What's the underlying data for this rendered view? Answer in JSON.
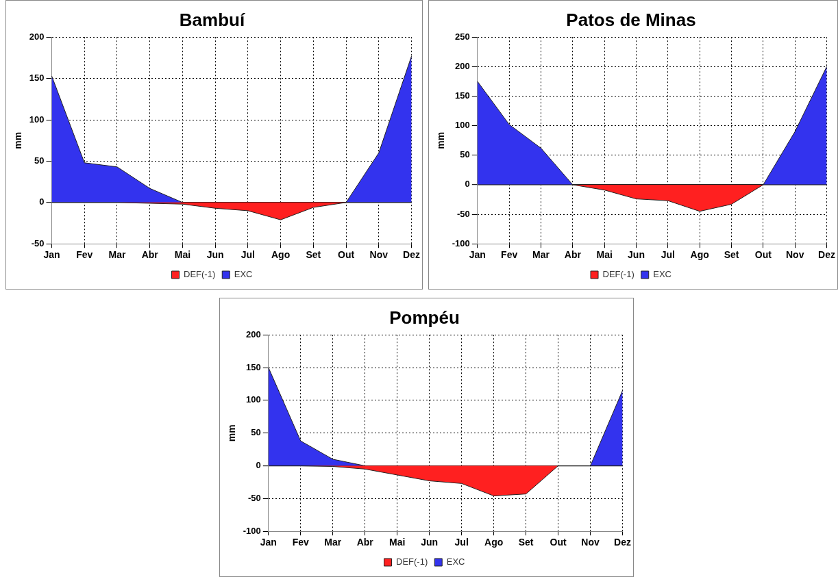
{
  "chart_data": [
    {
      "type": "area",
      "title": "Bambuí",
      "ylabel": "mm",
      "categories": [
        "Jan",
        "Fev",
        "Mar",
        "Abr",
        "Mai",
        "Jun",
        "Jul",
        "Ago",
        "Set",
        "Out",
        "Nov",
        "Dez"
      ],
      "series": [
        {
          "name": "DEF(-1)",
          "color": "#ff2020",
          "values": [
            0,
            0,
            0,
            -1,
            -2,
            -7,
            -10,
            -21,
            -6,
            0,
            0,
            0
          ]
        },
        {
          "name": "EXC",
          "color": "#3333ee",
          "values": [
            153,
            48,
            43,
            17,
            0,
            0,
            0,
            0,
            0,
            0,
            60,
            177
          ]
        }
      ],
      "ylim": [
        -50,
        200
      ],
      "yticks": [
        -50,
        0,
        50,
        100,
        150,
        200
      ],
      "grid": true,
      "legend": "bottom",
      "marker": "none"
    },
    {
      "type": "area",
      "title": "Patos de Minas",
      "ylabel": "mm",
      "categories": [
        "Jan",
        "Fev",
        "Mar",
        "Abr",
        "Mai",
        "Jun",
        "Jul",
        "Ago",
        "Set",
        "Out",
        "Nov",
        "Dez"
      ],
      "series": [
        {
          "name": "DEF(-1)",
          "color": "#ff2020",
          "values": [
            0,
            0,
            0,
            0,
            -9,
            -24,
            -27,
            -45,
            -33,
            0,
            0,
            0
          ]
        },
        {
          "name": "EXC",
          "color": "#3333ee",
          "values": [
            175,
            102,
            62,
            0,
            0,
            0,
            0,
            0,
            0,
            0,
            90,
            200
          ]
        }
      ],
      "ylim": [
        -100,
        250
      ],
      "yticks": [
        -100,
        -50,
        0,
        50,
        100,
        150,
        200,
        250
      ],
      "grid": true,
      "legend": "bottom",
      "marker": "none"
    },
    {
      "type": "area",
      "title": "Pompéu",
      "ylabel": "mm",
      "categories": [
        "Jan",
        "Fev",
        "Mar",
        "Abr",
        "Mai",
        "Jun",
        "Jul",
        "Ago",
        "Set",
        "Out",
        "Nov",
        "Dez"
      ],
      "series": [
        {
          "name": "DEF(-1)",
          "color": "#ff2020",
          "values": [
            0,
            0,
            -1,
            -5,
            -14,
            -23,
            -27,
            -46,
            -43,
            0,
            0,
            0
          ]
        },
        {
          "name": "EXC",
          "color": "#3333ee",
          "values": [
            150,
            38,
            10,
            0,
            0,
            0,
            0,
            0,
            0,
            0,
            0,
            115
          ]
        }
      ],
      "ylim": [
        -100,
        200
      ],
      "yticks": [
        -100,
        -50,
        0,
        50,
        100,
        150,
        200
      ],
      "grid": true,
      "legend": "bottom",
      "marker": "none"
    }
  ]
}
